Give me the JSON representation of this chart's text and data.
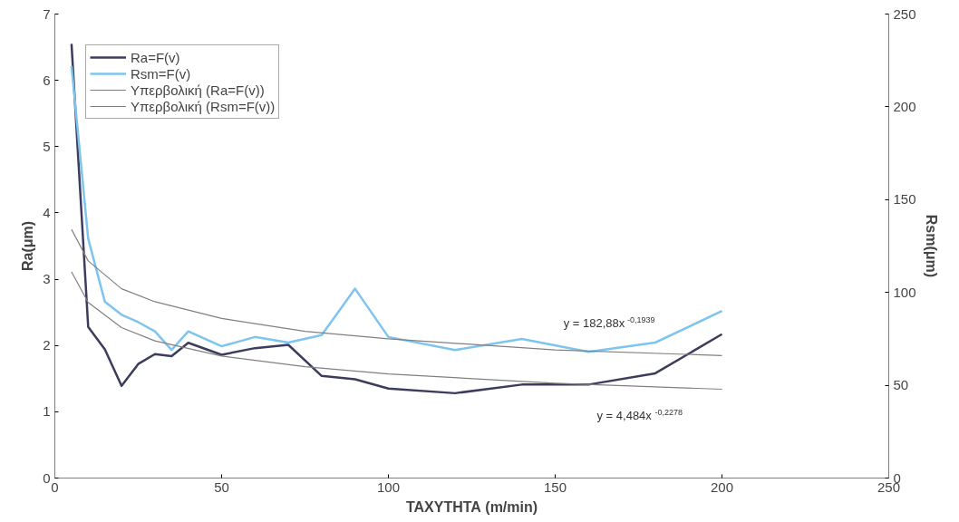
{
  "chart_data": {
    "type": "line",
    "xlabel": "ΤΑΧΥΤΗΤΑ (m/min)",
    "ylabel": "Ra(μm)",
    "y2label": "Rsm(μm)",
    "xlim": [
      0,
      250
    ],
    "xticks": [
      0,
      50,
      100,
      150,
      200,
      250
    ],
    "ylim": [
      0,
      7
    ],
    "yticks": [
      0,
      1,
      2,
      3,
      4,
      5,
      6,
      7
    ],
    "y2lim": [
      0,
      250
    ],
    "y2ticks": [
      0,
      50,
      100,
      150,
      200,
      250
    ],
    "grid": false,
    "legend": "top left",
    "marker": "none",
    "line_style": "solid",
    "series": [
      {
        "name": "Ra=F(v)",
        "color": "#3c3c5c",
        "x": [
          5,
          10,
          15,
          20,
          25,
          30,
          35,
          40,
          50,
          60,
          70,
          80,
          90,
          100,
          120,
          140,
          160,
          180,
          200
        ],
        "values": [
          6.55,
          2.28,
          1.94,
          1.39,
          1.72,
          1.87,
          1.84,
          2.04,
          1.86,
          1.96,
          2.01,
          1.54,
          1.49,
          1.35,
          1.28,
          1.41,
          1.41,
          1.58,
          2.17
        ]
      },
      {
        "name": "Rsm=F(v)",
        "color": "#7ec4ee",
        "axis": "y2",
        "x": [
          5,
          10,
          15,
          20,
          25,
          30,
          35,
          40,
          50,
          60,
          70,
          80,
          90,
          100,
          120,
          140,
          160,
          180,
          200
        ],
        "values": [
          222,
          129,
          95,
          88,
          84,
          79,
          69,
          79,
          71,
          76,
          73,
          77,
          102,
          76,
          69,
          75,
          68,
          73,
          90
        ]
      },
      {
        "name": "Υπερβολική (Ra=F(v))",
        "color": "#808080",
        "x": [
          5,
          10,
          20,
          30,
          50,
          75,
          100,
          150,
          200
        ],
        "values": [
          3.11,
          2.65,
          2.27,
          2.07,
          1.84,
          1.68,
          1.57,
          1.43,
          1.34
        ]
      },
      {
        "name": "Υπερβολική (Rsm=F(v))",
        "color": "#808080",
        "axis": "y2",
        "x": [
          5,
          10,
          20,
          30,
          50,
          75,
          100,
          150,
          200
        ],
        "values": [
          134,
          117,
          102,
          95,
          86,
          79,
          75,
          69,
          66
        ]
      }
    ],
    "annotations": [
      "y = 182,88x$^{-0,1939}$",
      "y = 4,484x$^{-0,2278}$"
    ]
  }
}
